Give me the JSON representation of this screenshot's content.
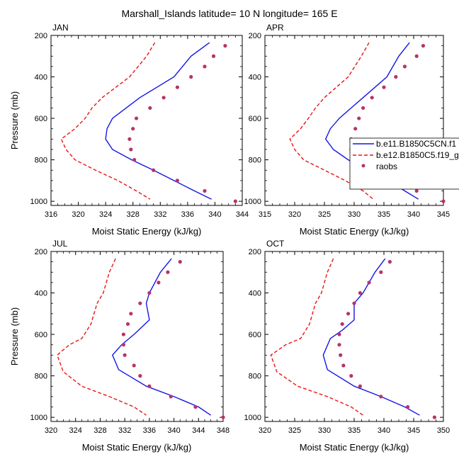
{
  "figure": {
    "title": "Marshall_Islands  latitude= 10 N longitude= 165 E",
    "legend": {
      "entries": [
        {
          "label": "b.e11.B1850C5CN.f1",
          "color": "#1515e6",
          "style": "solid"
        },
        {
          "label": "b.e12.B1850C5.f19_g",
          "color": "#e61515",
          "style": "dashed"
        },
        {
          "label": "raobs",
          "color": "#b8336a",
          "style": "marker"
        }
      ]
    }
  },
  "chart_data": [
    {
      "type": "line",
      "title": "JAN",
      "xlabel": "Moist Static Energy (kJ/kg)",
      "ylabel": "Pressure (mb)",
      "xlim": [
        316,
        344
      ],
      "ylim": [
        200,
        1020
      ],
      "y_reversed": true,
      "xticks": [
        316,
        320,
        324,
        328,
        332,
        336,
        340,
        344
      ],
      "yticks": [
        200,
        400,
        600,
        800,
        1000
      ],
      "series": [
        {
          "name": "b.e11.B1850C5CN.f1",
          "color": "#1515e6",
          "style": "solid",
          "points": [
            [
              339.2,
              235
            ],
            [
              336.5,
              300
            ],
            [
              334.0,
              400
            ],
            [
              331.5,
              450
            ],
            [
              329.0,
              500
            ],
            [
              327.0,
              550
            ],
            [
              325.0,
              600
            ],
            [
              324.2,
              650
            ],
            [
              324.0,
              700
            ],
            [
              325.0,
              750
            ],
            [
              327.8,
              800
            ],
            [
              331.0,
              850
            ],
            [
              334.0,
              900
            ],
            [
              337.0,
              950
            ],
            [
              339.5,
              990
            ]
          ]
        },
        {
          "name": "b.e12.B1850C5.f19_g",
          "color": "#e61515",
          "style": "dashed",
          "points": [
            [
              331.2,
              235
            ],
            [
              330.0,
              300
            ],
            [
              327.5,
              400
            ],
            [
              325.5,
              450
            ],
            [
              323.5,
              500
            ],
            [
              322.0,
              550
            ],
            [
              321.0,
              600
            ],
            [
              319.5,
              650
            ],
            [
              317.5,
              700
            ],
            [
              318.2,
              750
            ],
            [
              319.5,
              800
            ],
            [
              322.5,
              850
            ],
            [
              325.8,
              900
            ],
            [
              328.5,
              950
            ],
            [
              330.5,
              990
            ]
          ]
        },
        {
          "name": "raobs",
          "color": "#b8336a",
          "style": "marker",
          "points": [
            [
              341.5,
              250
            ],
            [
              339.8,
              300
            ],
            [
              338.5,
              350
            ],
            [
              336.5,
              400
            ],
            [
              334.5,
              450
            ],
            [
              332.5,
              500
            ],
            [
              330.5,
              550
            ],
            [
              328.5,
              600
            ],
            [
              328.0,
              650
            ],
            [
              327.5,
              700
            ],
            [
              327.7,
              750
            ],
            [
              328.2,
              800
            ],
            [
              331.0,
              850
            ],
            [
              334.5,
              900
            ],
            [
              338.5,
              950
            ],
            [
              343.0,
              1000
            ]
          ]
        }
      ]
    },
    {
      "type": "line",
      "title": "APR",
      "xlabel": "Moist Static Energy (kJ/kg)",
      "ylabel": "Pressure (mb)",
      "xlim": [
        315,
        345
      ],
      "ylim": [
        200,
        1020
      ],
      "y_reversed": true,
      "xticks": [
        315,
        320,
        325,
        330,
        335,
        340,
        345
      ],
      "yticks": [
        200,
        400,
        600,
        800,
        1000
      ],
      "series": [
        {
          "name": "b.e11.B1850C5CN.f1",
          "color": "#1515e6",
          "style": "solid",
          "points": [
            [
              339.3,
              235
            ],
            [
              337.5,
              300
            ],
            [
              335.5,
              400
            ],
            [
              333.5,
              450
            ],
            [
              331.5,
              500
            ],
            [
              329.5,
              550
            ],
            [
              327.5,
              600
            ],
            [
              326.0,
              650
            ],
            [
              325.2,
              700
            ],
            [
              326.5,
              750
            ],
            [
              329.0,
              800
            ],
            [
              332.5,
              850
            ],
            [
              335.8,
              900
            ],
            [
              338.5,
              950
            ],
            [
              340.8,
              990
            ]
          ]
        },
        {
          "name": "b.e12.B1850C5.f19_g",
          "color": "#e61515",
          "style": "dashed",
          "points": [
            [
              332.5,
              235
            ],
            [
              331.2,
              300
            ],
            [
              329.0,
              400
            ],
            [
              327.0,
              450
            ],
            [
              325.0,
              500
            ],
            [
              323.5,
              550
            ],
            [
              322.3,
              600
            ],
            [
              321.0,
              650
            ],
            [
              319.2,
              700
            ],
            [
              320.0,
              750
            ],
            [
              321.5,
              800
            ],
            [
              325.0,
              850
            ],
            [
              328.5,
              900
            ],
            [
              331.5,
              950
            ],
            [
              333.2,
              990
            ]
          ]
        },
        {
          "name": "raobs",
          "color": "#b8336a",
          "style": "marker",
          "points": [
            [
              341.6,
              250
            ],
            [
              340.5,
              300
            ],
            [
              338.5,
              350
            ],
            [
              337.0,
              400
            ],
            [
              335.0,
              450
            ],
            [
              333.0,
              500
            ],
            [
              331.5,
              550
            ],
            [
              330.8,
              600
            ],
            [
              330.2,
              650
            ],
            [
              329.5,
              700
            ],
            [
              329.5,
              750
            ],
            [
              330.5,
              800
            ],
            [
              333.0,
              850
            ],
            [
              336.5,
              900
            ],
            [
              340.5,
              950
            ],
            [
              345.0,
              1000
            ]
          ]
        }
      ]
    },
    {
      "type": "line",
      "title": "JUL",
      "xlabel": "Moist Static Energy (kJ/kg)",
      "ylabel": "Pressure (mb)",
      "xlim": [
        320,
        348
      ],
      "ylim": [
        200,
        1020
      ],
      "y_reversed": true,
      "xticks": [
        320,
        324,
        328,
        332,
        336,
        340,
        344,
        348
      ],
      "yticks": [
        200,
        400,
        600,
        800,
        1000
      ],
      "series": [
        {
          "name": "b.e11.B1850C5CN.f1",
          "color": "#1515e6",
          "style": "solid",
          "points": [
            [
              339.6,
              235
            ],
            [
              337.8,
              300
            ],
            [
              336.0,
              400
            ],
            [
              335.5,
              450
            ],
            [
              336.0,
              530
            ],
            [
              333.5,
              600
            ],
            [
              331.5,
              650
            ],
            [
              330.0,
              700
            ],
            [
              331.0,
              770
            ],
            [
              335.5,
              850
            ],
            [
              340.0,
              900
            ],
            [
              344.0,
              950
            ],
            [
              346.0,
              990
            ]
          ]
        },
        {
          "name": "b.e12.B1850C5.f19_g",
          "color": "#e61515",
          "style": "dashed",
          "points": [
            [
              330.5,
              235
            ],
            [
              329.5,
              300
            ],
            [
              328.5,
              400
            ],
            [
              327.5,
              450
            ],
            [
              326.5,
              550
            ],
            [
              325.0,
              620
            ],
            [
              323.0,
              650
            ],
            [
              321.0,
              700
            ],
            [
              322.0,
              780
            ],
            [
              325.0,
              850
            ],
            [
              329.5,
              900
            ],
            [
              333.5,
              950
            ],
            [
              335.5,
              990
            ]
          ]
        },
        {
          "name": "raobs",
          "color": "#b8336a",
          "style": "marker",
          "points": [
            [
              341.0,
              250
            ],
            [
              339.0,
              300
            ],
            [
              337.5,
              350
            ],
            [
              336.0,
              400
            ],
            [
              334.5,
              450
            ],
            [
              333.0,
              500
            ],
            [
              332.5,
              550
            ],
            [
              331.8,
              600
            ],
            [
              331.8,
              650
            ],
            [
              332.0,
              700
            ],
            [
              333.5,
              750
            ],
            [
              334.5,
              800
            ],
            [
              336.0,
              850
            ],
            [
              339.5,
              900
            ],
            [
              343.5,
              950
            ],
            [
              348.0,
              1000
            ]
          ]
        }
      ]
    },
    {
      "type": "line",
      "title": "OCT",
      "xlabel": "Moist Static Energy (kJ/kg)",
      "ylabel": "Pressure (mb)",
      "xlim": [
        320,
        350
      ],
      "ylim": [
        200,
        1020
      ],
      "y_reversed": true,
      "xticks": [
        320,
        325,
        330,
        335,
        340,
        345,
        350
      ],
      "yticks": [
        200,
        400,
        600,
        800,
        1000
      ],
      "series": [
        {
          "name": "b.e11.B1850C5CN.f1",
          "color": "#1515e6",
          "style": "solid",
          "points": [
            [
              340.2,
              235
            ],
            [
              338.5,
              300
            ],
            [
              336.5,
              400
            ],
            [
              335.0,
              450
            ],
            [
              335.0,
              530
            ],
            [
              333.0,
              580
            ],
            [
              331.0,
              620
            ],
            [
              329.8,
              700
            ],
            [
              330.5,
              770
            ],
            [
              335.0,
              850
            ],
            [
              339.5,
              900
            ],
            [
              343.5,
              950
            ],
            [
              346.0,
              990
            ]
          ]
        },
        {
          "name": "b.e12.B1850C5.f19_g",
          "color": "#e61515",
          "style": "dashed",
          "points": [
            [
              331.5,
              235
            ],
            [
              330.5,
              300
            ],
            [
              329.5,
              400
            ],
            [
              328.5,
              450
            ],
            [
              327.5,
              550
            ],
            [
              326.0,
              620
            ],
            [
              323.5,
              650
            ],
            [
              321.0,
              700
            ],
            [
              322.0,
              780
            ],
            [
              325.5,
              850
            ],
            [
              330.5,
              900
            ],
            [
              334.5,
              950
            ],
            [
              336.5,
              990
            ]
          ]
        },
        {
          "name": "raobs",
          "color": "#b8336a",
          "style": "marker",
          "points": [
            [
              341.0,
              250
            ],
            [
              339.5,
              300
            ],
            [
              337.5,
              350
            ],
            [
              336.0,
              400
            ],
            [
              335.0,
              450
            ],
            [
              334.0,
              500
            ],
            [
              333.0,
              550
            ],
            [
              332.5,
              600
            ],
            [
              332.5,
              650
            ],
            [
              332.7,
              700
            ],
            [
              333.2,
              750
            ],
            [
              334.5,
              800
            ],
            [
              336.0,
              850
            ],
            [
              339.5,
              900
            ],
            [
              344.0,
              950
            ],
            [
              348.5,
              1000
            ]
          ]
        }
      ]
    }
  ]
}
